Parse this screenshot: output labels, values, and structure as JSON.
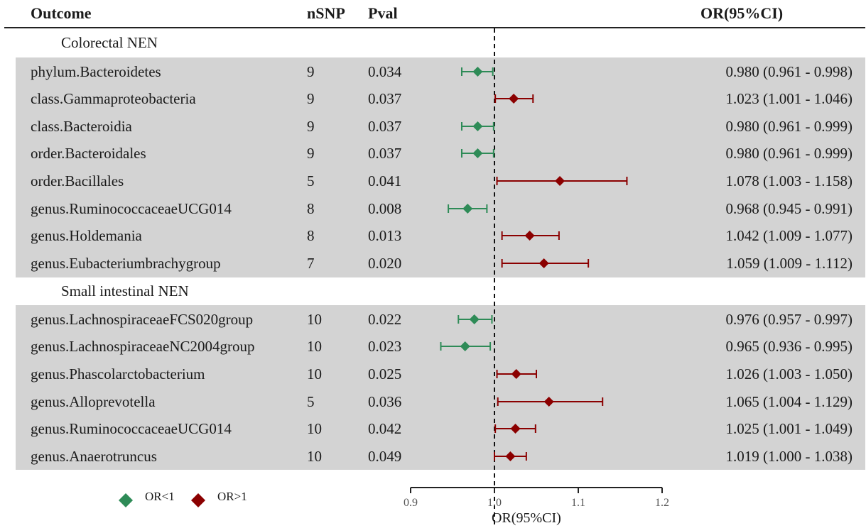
{
  "header": {
    "outcome": "Outcome",
    "nsnp": "nSNP",
    "pval": "Pval",
    "or": "OR(95%CI)"
  },
  "groups": [
    {
      "label": "Colorectal NEN",
      "rows": [
        {
          "outcome": "phylum.Bacteroidetes",
          "nsnp": "9",
          "pval": "0.034",
          "or_text": "0.980 (0.961 - 0.998)"
        },
        {
          "outcome": "class.Gammaproteobacteria",
          "nsnp": "9",
          "pval": "0.037",
          "or_text": "1.023 (1.001 - 1.046)"
        },
        {
          "outcome": "class.Bacteroidia",
          "nsnp": "9",
          "pval": "0.037",
          "or_text": "0.980 (0.961 - 0.999)"
        },
        {
          "outcome": "order.Bacteroidales",
          "nsnp": "9",
          "pval": "0.037",
          "or_text": "0.980 (0.961 - 0.999)"
        },
        {
          "outcome": "order.Bacillales",
          "nsnp": "5",
          "pval": "0.041",
          "or_text": "1.078 (1.003 - 1.158)"
        },
        {
          "outcome": "genus.RuminococcaceaeUCG014",
          "nsnp": "8",
          "pval": "0.008",
          "or_text": "0.968 (0.945 - 0.991)"
        },
        {
          "outcome": "genus.Holdemania",
          "nsnp": "8",
          "pval": "0.013",
          "or_text": "1.042 (1.009 - 1.077)"
        },
        {
          "outcome": "genus.Eubacteriumbrachygroup",
          "nsnp": "7",
          "pval": "0.020",
          "or_text": "1.059 (1.009 - 1.112)"
        }
      ]
    },
    {
      "label": "Small intestinal NEN",
      "rows": [
        {
          "outcome": "genus.LachnospiraceaeFCS020group",
          "nsnp": "10",
          "pval": "0.022",
          "or_text": "0.976 (0.957 - 0.997)"
        },
        {
          "outcome": "genus.LachnospiraceaeNC2004group",
          "nsnp": "10",
          "pval": "0.023",
          "or_text": "0.965 (0.936 - 0.995)"
        },
        {
          "outcome": "genus.Phascolarctobacterium",
          "nsnp": "10",
          "pval": "0.025",
          "or_text": "1.026 (1.003 - 1.050)"
        },
        {
          "outcome": "genus.Alloprevotella",
          "nsnp": "5",
          "pval": "0.036",
          "or_text": "1.065 (1.004 - 1.129)"
        },
        {
          "outcome": "genus.RuminococcaceaeUCG014",
          "nsnp": "10",
          "pval": "0.042",
          "or_text": "1.025 (1.001 - 1.049)"
        },
        {
          "outcome": "genus.Anaerotruncus",
          "nsnp": "10",
          "pval": "0.049",
          "or_text": "1.019 (1.000 - 1.038)"
        }
      ]
    }
  ],
  "legend": {
    "lt1_label": "OR<1",
    "gt1_label": "OR>1"
  },
  "colors": {
    "lt1": "#2e8b57",
    "gt1": "#8b0000",
    "band": "#d3d3d3"
  },
  "chart_data": {
    "type": "forest",
    "xlabel": "OR(95%CI)",
    "xlim": [
      0.9,
      1.2
    ],
    "xticks": [
      "0.9",
      "1.0",
      "1.1",
      "1.2"
    ],
    "reference_line": 1.0,
    "points": [
      {
        "label": "phylum.Bacteroidetes",
        "or": 0.98,
        "lo": 0.961,
        "hi": 0.998
      },
      {
        "label": "class.Gammaproteobacteria",
        "or": 1.023,
        "lo": 1.001,
        "hi": 1.046
      },
      {
        "label": "class.Bacteroidia",
        "or": 0.98,
        "lo": 0.961,
        "hi": 0.999
      },
      {
        "label": "order.Bacteroidales",
        "or": 0.98,
        "lo": 0.961,
        "hi": 0.999
      },
      {
        "label": "order.Bacillales",
        "or": 1.078,
        "lo": 1.003,
        "hi": 1.158
      },
      {
        "label": "genus.RuminococcaceaeUCG014",
        "or": 0.968,
        "lo": 0.945,
        "hi": 0.991
      },
      {
        "label": "genus.Holdemania",
        "or": 1.042,
        "lo": 1.009,
        "hi": 1.077
      },
      {
        "label": "genus.Eubacteriumbrachygroup",
        "or": 1.059,
        "lo": 1.009,
        "hi": 1.112
      },
      {
        "label": "genus.LachnospiraceaeFCS020group",
        "or": 0.976,
        "lo": 0.957,
        "hi": 0.997
      },
      {
        "label": "genus.LachnospiraceaeNC2004group",
        "or": 0.965,
        "lo": 0.936,
        "hi": 0.995
      },
      {
        "label": "genus.Phascolarctobacterium",
        "or": 1.026,
        "lo": 1.003,
        "hi": 1.05
      },
      {
        "label": "genus.Alloprevotella",
        "or": 1.065,
        "lo": 1.004,
        "hi": 1.129
      },
      {
        "label": "genus.RuminococcaceaeUCG014",
        "or": 1.025,
        "lo": 1.001,
        "hi": 1.049
      },
      {
        "label": "genus.Anaerotruncus",
        "or": 1.019,
        "lo": 1.0,
        "hi": 1.038
      }
    ]
  }
}
